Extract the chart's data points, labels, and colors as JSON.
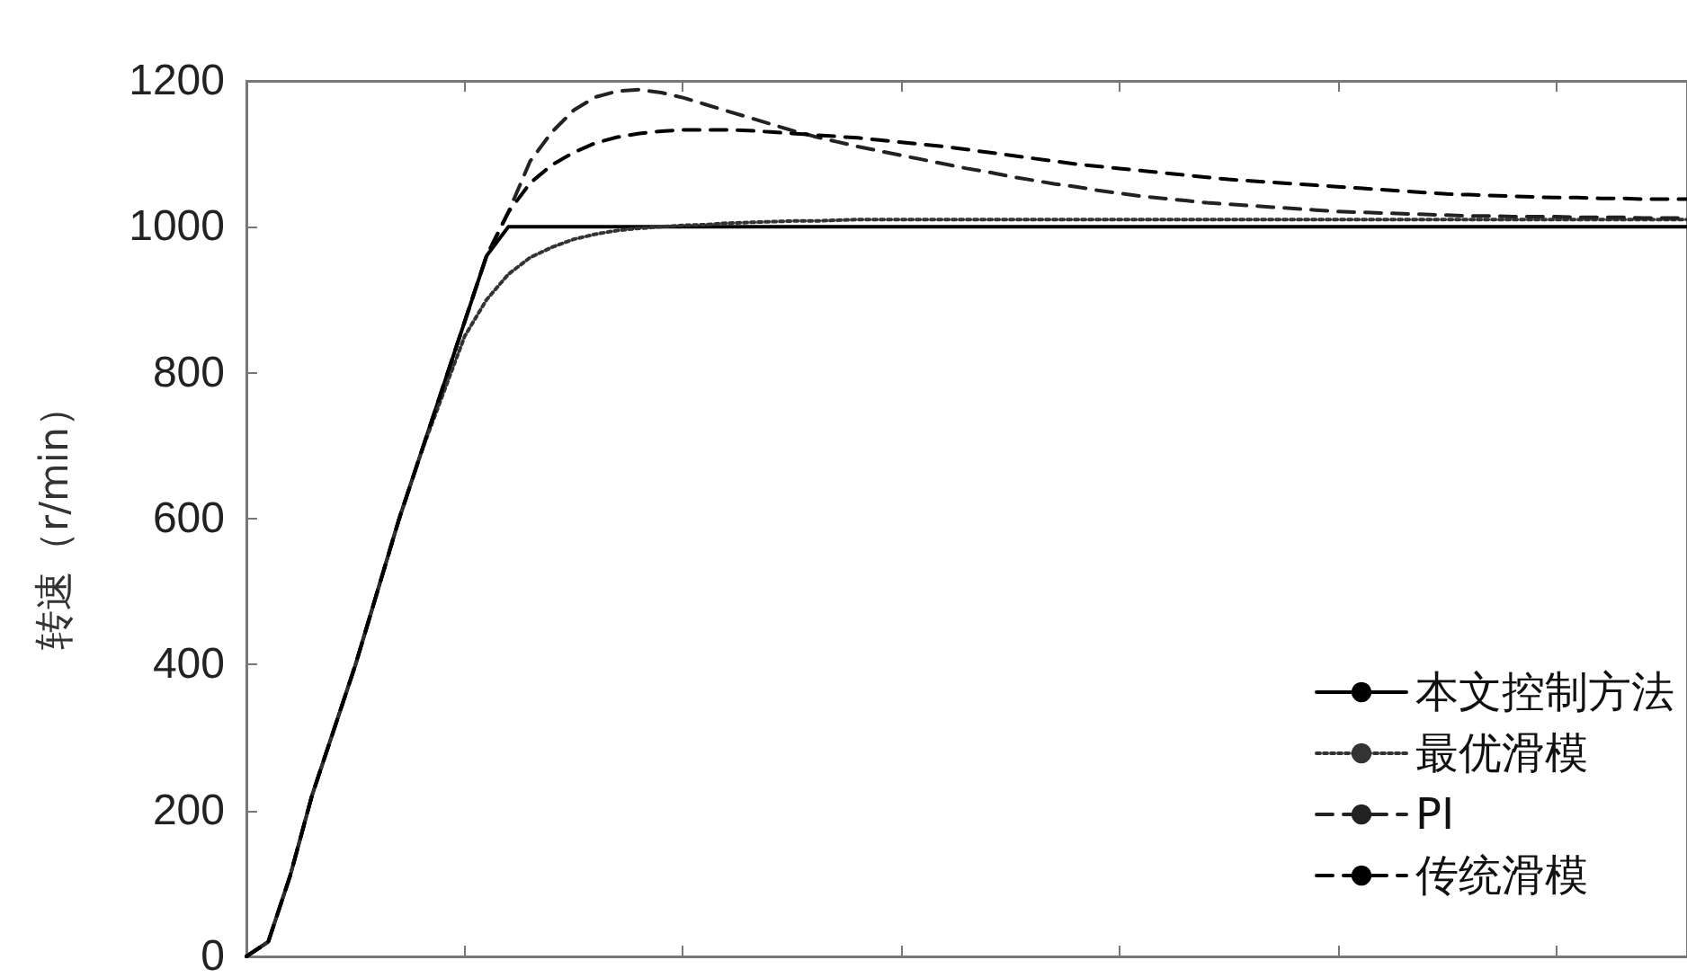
{
  "chart_data": {
    "type": "line",
    "ylabel": "转速（r/min）",
    "categories": [
      null,
      null,
      null,
      null,
      null,
      null,
      null,
      null,
      null,
      null,
      null,
      null,
      null,
      null,
      null,
      null,
      null,
      null,
      null,
      null,
      null,
      null,
      null,
      null,
      null,
      null,
      null,
      null,
      null,
      null,
      null,
      null,
      null,
      null,
      null,
      null,
      null,
      null,
      null,
      null,
      null,
      null,
      null,
      null,
      null,
      null,
      null,
      null,
      null,
      null,
      null,
      null,
      null,
      null,
      null,
      null,
      null,
      null,
      null,
      null,
      null,
      null,
      null,
      null,
      null,
      null,
      null
    ],
    "series": [
      {
        "name": "本文控制方法",
        "color": "#000000",
        "line_style": "solid",
        "values": [
          0,
          20,
          110,
          220,
          310,
          400,
          500,
          600,
          690,
          780,
          870,
          960,
          1000,
          1000,
          1000,
          1000,
          1000,
          1000,
          1000,
          1000,
          1000,
          1000,
          1000,
          1000,
          1000,
          1000,
          1000,
          1000,
          1000,
          1000,
          1000,
          1000,
          1000,
          1000,
          1000,
          1000,
          1000,
          1000,
          1000,
          1000,
          1000,
          1000,
          1000,
          1000,
          1000,
          1000,
          1000,
          1000,
          1000,
          1000,
          1000,
          1000,
          1000,
          1000,
          1000,
          1000,
          1000,
          1000,
          1000,
          1000,
          1000,
          1000,
          1000,
          1000,
          1000,
          1000,
          1000
        ]
      },
      {
        "name": "最优滑模",
        "color": "#333333",
        "line_style": "dotted",
        "values": [
          0,
          20,
          110,
          220,
          310,
          400,
          500,
          600,
          690,
          770,
          850,
          900,
          935,
          958,
          972,
          983,
          990,
          995,
          998,
          1000,
          1002,
          1003,
          1005,
          1006,
          1007,
          1008,
          1008,
          1009,
          1010,
          1010,
          1010,
          1010,
          1010,
          1010,
          1010,
          1010,
          1010,
          1010,
          1010,
          1010,
          1010,
          1010,
          1010,
          1010,
          1010,
          1010,
          1010,
          1010,
          1010,
          1010,
          1010,
          1010,
          1010,
          1010,
          1010,
          1010,
          1010,
          1010,
          1010,
          1010,
          1010,
          1010,
          1010,
          1010,
          1010,
          1010,
          1010
        ]
      },
      {
        "name": "PI",
        "color": "#222222",
        "line_style": "dashed",
        "values": [
          0,
          20,
          110,
          220,
          310,
          400,
          500,
          600,
          690,
          780,
          870,
          960,
          1020,
          1090,
          1130,
          1160,
          1178,
          1186,
          1188,
          1184,
          1177,
          1168,
          1159,
          1150,
          1141,
          1132,
          1124,
          1117,
          1110,
          1104,
          1098,
          1092,
          1086,
          1080,
          1075,
          1069,
          1064,
          1059,
          1055,
          1050,
          1046,
          1042,
          1039,
          1036,
          1033,
          1031,
          1029,
          1027,
          1025,
          1023,
          1021,
          1020,
          1019,
          1018,
          1017,
          1016,
          1015,
          1015,
          1014,
          1014,
          1014,
          1013,
          1013,
          1013,
          1012,
          1012,
          1012
        ]
      },
      {
        "name": "传统滑模",
        "color": "#000000",
        "line_style": "dashed",
        "values": [
          0,
          20,
          110,
          220,
          310,
          400,
          500,
          600,
          690,
          780,
          870,
          960,
          1020,
          1060,
          1085,
          1102,
          1115,
          1123,
          1128,
          1131,
          1133,
          1133,
          1133,
          1132,
          1130,
          1128,
          1126,
          1124,
          1122,
          1119,
          1116,
          1113,
          1110,
          1106,
          1102,
          1098,
          1094,
          1090,
          1086,
          1083,
          1080,
          1077,
          1074,
          1071,
          1068,
          1065,
          1063,
          1061,
          1059,
          1057,
          1055,
          1053,
          1051,
          1049,
          1047,
          1045,
          1044,
          1043,
          1042,
          1041,
          1040,
          1040,
          1039,
          1039,
          1038,
          1038,
          1038
        ]
      }
    ],
    "ylim": [
      0,
      1200
    ],
    "yticks": [
      0,
      200,
      400,
      600,
      800,
      1000,
      1200
    ],
    "tick_labels": "y",
    "grid": false,
    "legend": "bottom right",
    "marker": "none"
  }
}
